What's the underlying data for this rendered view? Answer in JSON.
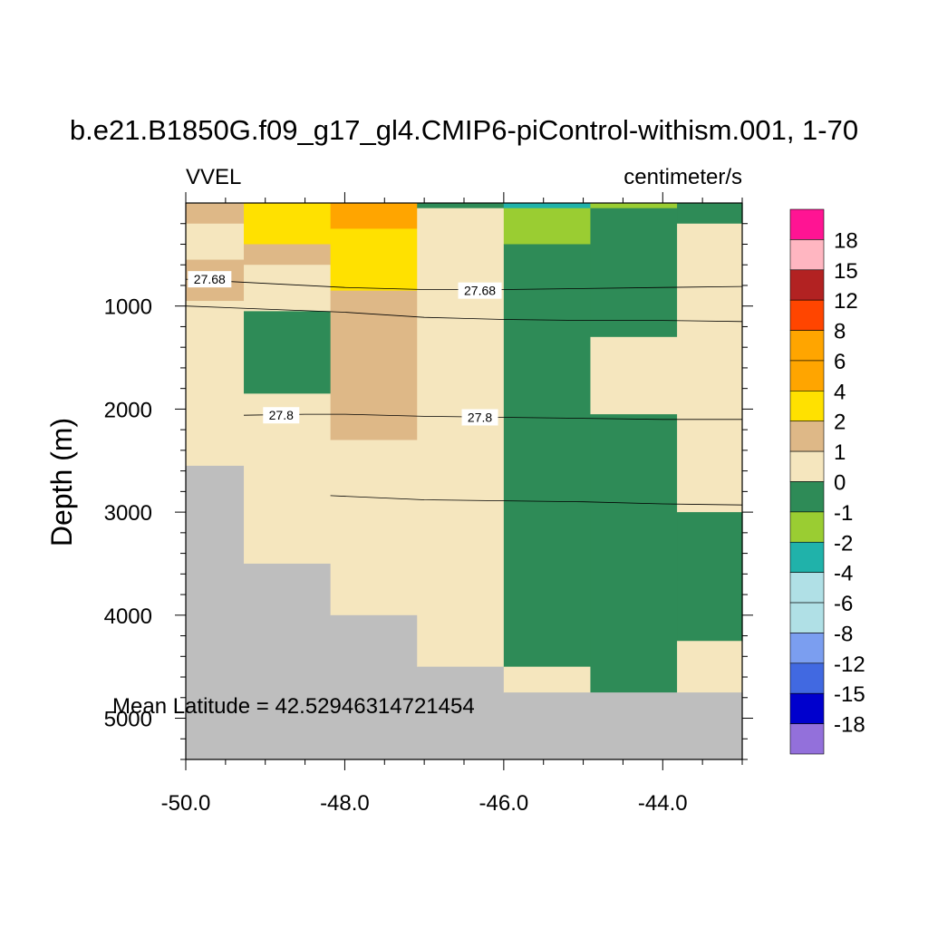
{
  "chart_data": {
    "type": "heatmap",
    "title": "b.e21.B1850G.f09_g17_gl4.CMIP6-piControl-withism.001, 1-70",
    "left_label": "VVEL",
    "right_label": "centimeter/s",
    "xlabel": "",
    "ylabel": "Depth (m)",
    "xlim": [
      -50.0,
      -43.0
    ],
    "ylim": [
      5400,
      0
    ],
    "x_ticks": [
      -50.0,
      -48.0,
      -46.0,
      -44.0
    ],
    "x_tick_labels": [
      "-50.0",
      "-48.0",
      "-46.0",
      "-44.0"
    ],
    "y_ticks": [
      1000,
      2000,
      3000,
      4000,
      5000
    ],
    "y_tick_labels": [
      "1000",
      "2000",
      "3000",
      "4000",
      "5000"
    ],
    "annotation": "Mean Latitude = 42.52946314721454",
    "missing_color": "#bebebe",
    "background_color": "#f5e6be",
    "columns": [
      {
        "x0": -50.0,
        "x1": -49.27,
        "cells": [
          {
            "z0": 0,
            "z1": 200,
            "color": "#deb887"
          },
          {
            "z0": 200,
            "z1": 550,
            "color": "#f5e6be"
          },
          {
            "z0": 550,
            "z1": 950,
            "color": "#deb887"
          },
          {
            "z0": 950,
            "z1": 2550,
            "color": "#f5e6be"
          },
          {
            "z0": 2550,
            "z1": 5400,
            "color": "#bebebe"
          }
        ]
      },
      {
        "x0": -49.27,
        "x1": -48.18,
        "cells": [
          {
            "z0": 0,
            "z1": 400,
            "color": "#ffe100"
          },
          {
            "z0": 400,
            "z1": 600,
            "color": "#deb887"
          },
          {
            "z0": 600,
            "z1": 1050,
            "color": "#f5e6be"
          },
          {
            "z0": 1050,
            "z1": 1850,
            "color": "#2e8b57"
          },
          {
            "z0": 1850,
            "z1": 3500,
            "color": "#f5e6be"
          },
          {
            "z0": 3500,
            "z1": 5400,
            "color": "#bebebe"
          }
        ]
      },
      {
        "x0": -48.18,
        "x1": -47.09,
        "cells": [
          {
            "z0": 0,
            "z1": 250,
            "color": "#ffa500"
          },
          {
            "z0": 250,
            "z1": 850,
            "color": "#ffe100"
          },
          {
            "z0": 850,
            "z1": 2300,
            "color": "#deb887"
          },
          {
            "z0": 2300,
            "z1": 4000,
            "color": "#f5e6be"
          },
          {
            "z0": 4000,
            "z1": 5400,
            "color": "#bebebe"
          }
        ]
      },
      {
        "x0": -47.09,
        "x1": -46.0,
        "cells": [
          {
            "z0": 0,
            "z1": 50,
            "color": "#2e8b57"
          },
          {
            "z0": 50,
            "z1": 4500,
            "color": "#f5e6be"
          },
          {
            "z0": 4500,
            "z1": 5400,
            "color": "#bebebe"
          }
        ]
      },
      {
        "x0": -46.0,
        "x1": -44.91,
        "cells": [
          {
            "z0": 0,
            "z1": 50,
            "color": "#20b2aa"
          },
          {
            "z0": 50,
            "z1": 400,
            "color": "#9acd32"
          },
          {
            "z0": 400,
            "z1": 4500,
            "color": "#2e8b57"
          },
          {
            "z0": 4500,
            "z1": 4750,
            "color": "#f5e6be"
          },
          {
            "z0": 4750,
            "z1": 5400,
            "color": "#bebebe"
          }
        ]
      },
      {
        "x0": -44.91,
        "x1": -43.82,
        "cells": [
          {
            "z0": 0,
            "z1": 50,
            "color": "#9acd32"
          },
          {
            "z0": 50,
            "z1": 1300,
            "color": "#2e8b57"
          },
          {
            "z0": 1300,
            "z1": 2050,
            "color": "#f5e6be"
          },
          {
            "z0": 2050,
            "z1": 4750,
            "color": "#2e8b57"
          },
          {
            "z0": 4750,
            "z1": 5400,
            "color": "#bebebe"
          }
        ]
      },
      {
        "x0": -43.82,
        "x1": -43.0,
        "cells": [
          {
            "z0": 0,
            "z1": 200,
            "color": "#2e8b57"
          },
          {
            "z0": 200,
            "z1": 3000,
            "color": "#f5e6be"
          },
          {
            "z0": 3000,
            "z1": 4250,
            "color": "#2e8b57"
          },
          {
            "z0": 4250,
            "z1": 4750,
            "color": "#f5e6be"
          },
          {
            "z0": 4750,
            "z1": 5400,
            "color": "#bebebe"
          }
        ]
      }
    ],
    "contours": [
      {
        "value": "27.68",
        "points": [
          [
            -50.0,
            740
          ],
          [
            -49.0,
            780
          ],
          [
            -48.0,
            820
          ],
          [
            -47.0,
            840
          ],
          [
            -46.0,
            840
          ],
          [
            -45.0,
            830
          ],
          [
            -44.0,
            820
          ],
          [
            -43.0,
            810
          ]
        ],
        "labels": [
          [
            -49.7,
            740
          ],
          [
            -46.3,
            850
          ]
        ]
      },
      {
        "value": "",
        "points": [
          [
            -50.0,
            1000
          ],
          [
            -49.0,
            1030
          ],
          [
            -48.0,
            1060
          ],
          [
            -47.0,
            1110
          ],
          [
            -46.0,
            1130
          ],
          [
            -45.0,
            1140
          ],
          [
            -44.0,
            1140
          ],
          [
            -43.0,
            1150
          ]
        ],
        "labels": []
      },
      {
        "value": "27.8",
        "points": [
          [
            -49.27,
            2060
          ],
          [
            -48.5,
            2050
          ],
          [
            -48.0,
            2050
          ],
          [
            -47.0,
            2070
          ],
          [
            -46.0,
            2080
          ],
          [
            -45.0,
            2090
          ],
          [
            -44.0,
            2100
          ],
          [
            -43.0,
            2100
          ]
        ],
        "labels": [
          [
            -48.8,
            2060
          ],
          [
            -46.3,
            2080
          ]
        ]
      },
      {
        "value": "",
        "points": [
          [
            -48.18,
            2840
          ],
          [
            -47.0,
            2880
          ],
          [
            -46.0,
            2890
          ],
          [
            -45.0,
            2900
          ],
          [
            -44.0,
            2920
          ],
          [
            -43.0,
            2930
          ]
        ],
        "labels": []
      }
    ],
    "colorbar": {
      "colors": [
        "#ff1493",
        "#ffb6c1",
        "#b22222",
        "#ff4500",
        "#ffa500",
        "#ffa500",
        "#ffe100",
        "#deb887",
        "#f5e6be",
        "#2e8b57",
        "#9acd32",
        "#20b2aa",
        "#b0e0e6",
        "#b0e0e6",
        "#7b9ef0",
        "#4169e1",
        "#0000cd",
        "#9370db"
      ],
      "labels": [
        "18",
        "15",
        "12",
        "8",
        "6",
        "4",
        "2",
        "1",
        "0",
        "-1",
        "-2",
        "-4",
        "-6",
        "-8",
        "-12",
        "-15",
        "-18"
      ]
    }
  }
}
